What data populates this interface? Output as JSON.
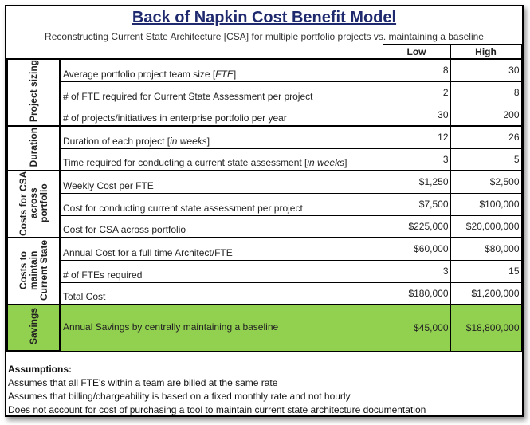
{
  "title": "Back of Napkin Cost Benefit Model",
  "subtitle": "Reconstructing Current State Architecture [CSA] for multiple portfolio projects vs. maintaining a baseline",
  "columns": [
    "Low",
    "High"
  ],
  "groups": [
    {
      "label": "Project sizing",
      "rows": [
        {
          "pre": "Average portfolio project team size [",
          "em": "FTE",
          "post": "]",
          "low": "8",
          "high": "30"
        },
        {
          "pre": "# of FTE required for Current State Assessment per project",
          "em": "",
          "post": "",
          "low": "2",
          "high": "8"
        },
        {
          "pre": "# of projects/initiatives in enterprise portfolio per year",
          "em": "",
          "post": "",
          "low": "30",
          "high": "200"
        }
      ]
    },
    {
      "label": "Duration",
      "rows": [
        {
          "pre": "Duration of each project [",
          "em": "in weeks",
          "post": "]",
          "low": "12",
          "high": "26"
        },
        {
          "pre": "Time required for conducting a current state assessment [",
          "em": "in weeks",
          "post": "]",
          "low": "3",
          "high": "5"
        }
      ]
    },
    {
      "label": "Costs for CSA across portfolio",
      "rows": [
        {
          "pre": "Weekly Cost per FTE",
          "em": "",
          "post": "",
          "low": "$1,250",
          "high": "$2,500"
        },
        {
          "pre": "Cost for conducting current state assessment per project",
          "em": "",
          "post": "",
          "low": "$7,500",
          "high": "$100,000"
        },
        {
          "pre": "Cost for CSA across portfolio",
          "em": "",
          "post": "",
          "low": "$225,000",
          "high": "$20,000,000"
        }
      ]
    },
    {
      "label": "Costs to maintain Current State",
      "rows": [
        {
          "pre": "Annual Cost for a full time Architect/FTE",
          "em": "",
          "post": "",
          "low": "$60,000",
          "high": "$80,000"
        },
        {
          "pre": "# of FTEs required",
          "em": "",
          "post": "",
          "low": "3",
          "high": "15"
        },
        {
          "pre": "Total Cost",
          "em": "",
          "post": "",
          "low": "$180,000",
          "high": "$1,200,000"
        }
      ]
    },
    {
      "label": "Savings",
      "rows": [
        {
          "pre": "Annual Savings by centrally maintaining a baseline",
          "em": "",
          "post": "",
          "low": "$45,000",
          "high": "$18,800,000"
        }
      ]
    }
  ],
  "savings_color": "#92d050",
  "assumptions": {
    "heading": "Assumptions:",
    "items": [
      "Assumes that all FTE's within a team are billed at the same rate",
      "Assumes that billing/chargeability is based on a fixed monthly rate and not hourly",
      "Does not account for cost of purchasing a tool to maintain current state architecture documentation"
    ]
  }
}
